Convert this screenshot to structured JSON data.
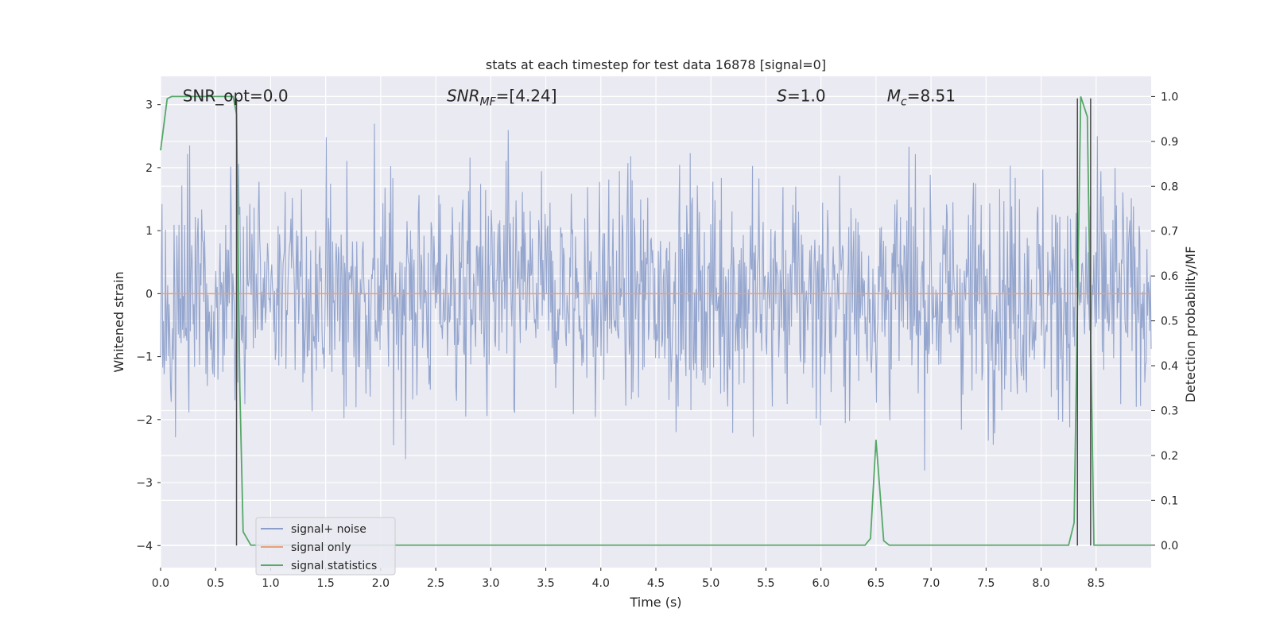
{
  "chart_data": {
    "type": "line",
    "title": "stats at each timestep for test data 16878 [signal=0]",
    "xlabel": "Time (s)",
    "ylabel": "Whitened strain",
    "y2label": "Detection probability/MF",
    "xlim": [
      0.0,
      9.0
    ],
    "ylim": [
      -4.35,
      3.45
    ],
    "y2lim": [
      -0.05,
      1.045
    ],
    "xticks": [
      "0.0",
      "0.5",
      "1.0",
      "1.5",
      "2.0",
      "2.5",
      "3.0",
      "3.5",
      "4.0",
      "4.5",
      "5.0",
      "5.5",
      "6.0",
      "6.5",
      "7.0",
      "7.5",
      "8.0",
      "8.5"
    ],
    "yticks": [
      "−4",
      "−3",
      "−2",
      "−1",
      "0",
      "1",
      "2",
      "3"
    ],
    "y2ticks": [
      "0.0",
      "0.1",
      "0.2",
      "0.3",
      "0.4",
      "0.5",
      "0.6",
      "0.7",
      "0.8",
      "0.9",
      "1.0"
    ],
    "grid": true,
    "legend_position": "lower-left",
    "annotations": [
      {
        "text": "SNR_opt=0.0",
        "x": 0.2,
        "y": 3.05
      },
      {
        "text": "SNR_MF=[4.24]",
        "x": 2.6,
        "y": 3.05
      },
      {
        "text": "S=1.0",
        "x": 5.6,
        "y": 3.05
      },
      {
        "text": "M_c=8.51",
        "x": 6.6,
        "y": 3.05
      }
    ],
    "series": [
      {
        "name": "signal+ noise",
        "color": "#8c9fca",
        "axis": "left",
        "description_range": [
          -4.0,
          3.1
        ],
        "sample_count": 1400,
        "noise_sigma": 0.9
      },
      {
        "name": "signal only",
        "color": "#e8a07a",
        "axis": "left",
        "x": [
          0.0,
          9.0
        ],
        "values": [
          0.0,
          0.0
        ]
      },
      {
        "name": "signal statistics",
        "color": "#55a868",
        "axis": "right",
        "x": [
          0.0,
          0.06,
          0.1,
          0.66,
          0.69,
          0.72,
          0.75,
          0.82,
          6.4,
          6.45,
          6.5,
          6.57,
          6.62,
          8.25,
          8.3,
          8.36,
          8.42,
          8.48,
          9.0
        ],
        "values": [
          0.88,
          0.995,
          1.0,
          1.0,
          0.96,
          0.35,
          0.03,
          0.0,
          0.0,
          0.015,
          0.235,
          0.01,
          0.0,
          0.0,
          0.05,
          1.0,
          0.955,
          0.0,
          0.0
        ]
      }
    ],
    "vertical_lines": [
      {
        "x": 0.69,
        "y": [
          -4.0,
          3.1
        ],
        "color": "#4a4a4a"
      },
      {
        "x": 8.33,
        "y": [
          -4.0,
          3.1
        ],
        "color": "#4a4a4a"
      },
      {
        "x": 8.45,
        "y": [
          -4.0,
          3.1
        ],
        "color": "#4a4a4a"
      }
    ]
  }
}
